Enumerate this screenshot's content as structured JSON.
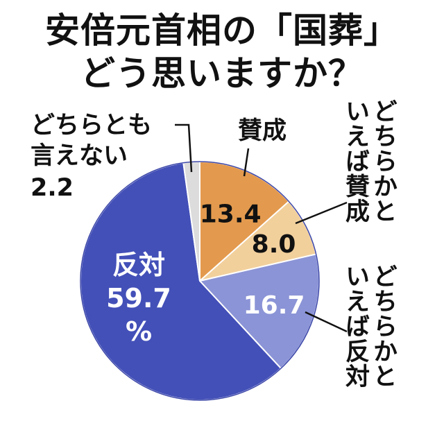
{
  "title": [
    "安倍元首相の「国葬」",
    "どう思いますか？"
  ],
  "chart_data": {
    "type": "pie",
    "title": "安倍元首相の「国葬」どう思いますか？",
    "slices": [
      {
        "label": "賛成",
        "value": 13.4,
        "value_text": "13.4",
        "color": "#e39a4e"
      },
      {
        "label": "どちらかといえば賛成",
        "label_lines": [
          "どちらかと",
          "いえば賛成"
        ],
        "value": 8.0,
        "value_text": "8.0",
        "color": "#f2d09c"
      },
      {
        "label": "どちらかといえば反対",
        "label_lines": [
          "どちらかと",
          "いえば反対"
        ],
        "value": 16.7,
        "value_text": "16.7",
        "color": "#8b94d6"
      },
      {
        "label": "反対",
        "value": 59.7,
        "value_text": "59.7",
        "unit": "%",
        "color": "#4350b8"
      },
      {
        "label": "どちらとも言えない",
        "label_lines": [
          "どちらとも",
          "言えない"
        ],
        "value": 2.2,
        "value_text": "2.2",
        "color": "#dcdcdc"
      }
    ]
  }
}
